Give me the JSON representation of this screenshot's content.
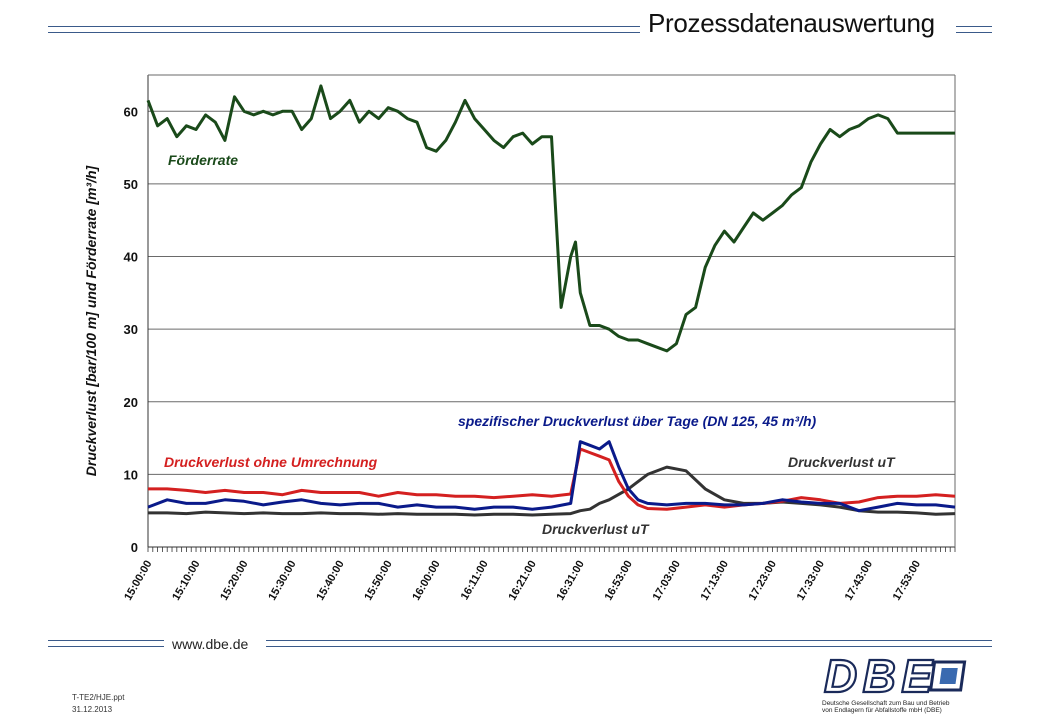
{
  "header": {
    "title": "Prozessdatenauswertung"
  },
  "footer": {
    "url": "www.dbe.de",
    "file": "T-TE2/HJE.ppt",
    "date": "31.12.2013"
  },
  "logo": {
    "text": "DBE",
    "line1": "Deutsche Gesellschaft zum Bau und Betrieb",
    "line2": "von Endlagern für Abfallstoffe mbH (DBE)"
  },
  "colors": {
    "foerderrate": "#1a4a1a",
    "rot": "#d42020",
    "blau": "#0a1a8a",
    "grau": "#333333",
    "rule": "#3a5a8a"
  },
  "chart_data": {
    "type": "line",
    "ylabel": "Druckverlust [bar/100 m] und Förderrate [m³/h]",
    "ylim": [
      0,
      65
    ],
    "yticks": [
      0,
      10,
      20,
      30,
      40,
      50,
      60
    ],
    "grid": true,
    "x_tick_labels": [
      "15:00:00",
      "15:10:00",
      "15:20:00",
      "15:30:00",
      "15:40:00",
      "15:50:00",
      "16:00:00",
      "16:11:00",
      "16:21:00",
      "16:31:00",
      "16:53:00",
      "17:03:00",
      "17:13:00",
      "17:23:00",
      "17:33:00",
      "17:43:00",
      "17:53:00"
    ],
    "annotations": {
      "foerderrate": "Förderrate",
      "rot": "Druckverlust ohne Umrechnung",
      "blau": "spezifischer Druckverlust über Tage (DN 125, 45 m³/h)",
      "grau_oben": "Druckverlust uT",
      "grau_unten": "Druckverlust uT"
    },
    "series": [
      {
        "name": "Förderrate",
        "color": "#1a4a1a",
        "x": [
          0,
          2,
          4,
          6,
          8,
          10,
          12,
          14,
          16,
          18,
          20,
          22,
          24,
          26,
          28,
          30,
          32,
          34,
          36,
          38,
          40,
          42,
          44,
          46,
          48,
          50,
          52,
          54,
          56,
          58,
          60,
          62,
          64,
          66,
          68,
          70,
          72,
          74,
          76,
          78,
          80,
          82,
          84,
          86,
          88,
          89,
          90,
          92,
          94,
          96,
          98,
          100,
          102,
          104,
          106,
          108,
          110,
          112,
          114,
          116,
          118,
          120,
          122,
          124,
          126,
          128,
          130,
          132,
          134,
          136,
          138,
          140,
          142,
          144,
          146,
          148,
          150,
          152,
          154,
          156,
          158,
          160,
          162,
          164,
          166,
          168
        ],
        "values": [
          61.5,
          58,
          59,
          56.5,
          58,
          57.5,
          59.5,
          58.5,
          56,
          62,
          60,
          59.5,
          60,
          59.5,
          60,
          60,
          57.5,
          59,
          63.5,
          59,
          60,
          61.5,
          58.5,
          60,
          59,
          60.5,
          60,
          59,
          58.5,
          55,
          54.5,
          56,
          58.5,
          61.5,
          59,
          57.5,
          56,
          55,
          56.5,
          57,
          55.5,
          56.5,
          56.5,
          33,
          40,
          42,
          35,
          30.5,
          30.5,
          30,
          29,
          28.5,
          28.5,
          28,
          27.5,
          27,
          28,
          32,
          33,
          38.5,
          41.5,
          43.5,
          42,
          44,
          46,
          45,
          46,
          47,
          48.5,
          49.5,
          53,
          55.5,
          57.5,
          56.5,
          57.5,
          58,
          59,
          59.5,
          59,
          57,
          57,
          57,
          57,
          57,
          57,
          57
        ]
      },
      {
        "name": "Druckverlust ohne Umrechnung",
        "color": "#d42020",
        "x": [
          0,
          4,
          8,
          12,
          16,
          20,
          24,
          28,
          32,
          36,
          40,
          44,
          48,
          52,
          56,
          60,
          64,
          68,
          72,
          76,
          80,
          84,
          88,
          90,
          92,
          94,
          96,
          98,
          100,
          102,
          104,
          108,
          112,
          116,
          120,
          124,
          128,
          132,
          136,
          140,
          144,
          148,
          152,
          156,
          160,
          164,
          168
        ],
        "values": [
          8,
          8,
          7.8,
          7.5,
          7.8,
          7.5,
          7.5,
          7.2,
          7.8,
          7.5,
          7.5,
          7.5,
          7,
          7.5,
          7.2,
          7.2,
          7,
          7,
          6.8,
          7,
          7.2,
          7,
          7.3,
          13.5,
          13,
          12.5,
          12,
          9,
          7,
          5.8,
          5.3,
          5.2,
          5.5,
          5.8,
          5.5,
          5.8,
          6,
          6.3,
          6.8,
          6.5,
          6,
          6.2,
          6.8,
          7,
          7,
          7.2,
          7
        ]
      },
      {
        "name": "spezifischer Druckverlust über Tage (DN 125, 45 m³/h)",
        "color": "#0a1a8a",
        "x": [
          0,
          4,
          8,
          12,
          16,
          20,
          24,
          28,
          32,
          36,
          40,
          44,
          48,
          52,
          56,
          60,
          64,
          68,
          72,
          76,
          80,
          84,
          88,
          90,
          92,
          94,
          96,
          98,
          100,
          102,
          104,
          108,
          112,
          116,
          120,
          124,
          128,
          132,
          136,
          140,
          144,
          148,
          152,
          156,
          160,
          164,
          168
        ],
        "values": [
          5.5,
          6.5,
          6,
          6,
          6.5,
          6.3,
          5.8,
          6.2,
          6.5,
          6,
          5.8,
          6,
          6,
          5.5,
          5.8,
          5.5,
          5.5,
          5.2,
          5.5,
          5.5,
          5.2,
          5.5,
          6,
          14.5,
          14,
          13.5,
          14.5,
          11,
          8,
          6.5,
          6,
          5.8,
          6,
          6,
          5.8,
          5.8,
          6,
          6.5,
          6.2,
          6,
          6,
          5,
          5.5,
          6,
          5.8,
          5.8,
          5.5
        ]
      },
      {
        "name": "Druckverlust uT",
        "color": "#333333",
        "x": [
          0,
          4,
          8,
          12,
          16,
          20,
          24,
          28,
          32,
          36,
          40,
          44,
          48,
          52,
          56,
          60,
          64,
          68,
          72,
          76,
          80,
          84,
          88,
          90,
          92,
          94,
          96,
          100,
          104,
          108,
          112,
          116,
          120,
          124,
          128,
          132,
          136,
          140,
          144,
          148,
          152,
          156,
          160,
          164,
          168
        ],
        "values": [
          4.7,
          4.7,
          4.6,
          4.8,
          4.7,
          4.6,
          4.7,
          4.6,
          4.6,
          4.7,
          4.6,
          4.6,
          4.5,
          4.6,
          4.5,
          4.5,
          4.5,
          4.4,
          4.5,
          4.5,
          4.4,
          4.5,
          4.6,
          5,
          5.2,
          6,
          6.5,
          8,
          10,
          11,
          10.5,
          8,
          6.5,
          6,
          6,
          6.2,
          6,
          5.8,
          5.5,
          5,
          4.8,
          4.8,
          4.7,
          4.5,
          4.6
        ]
      }
    ]
  }
}
